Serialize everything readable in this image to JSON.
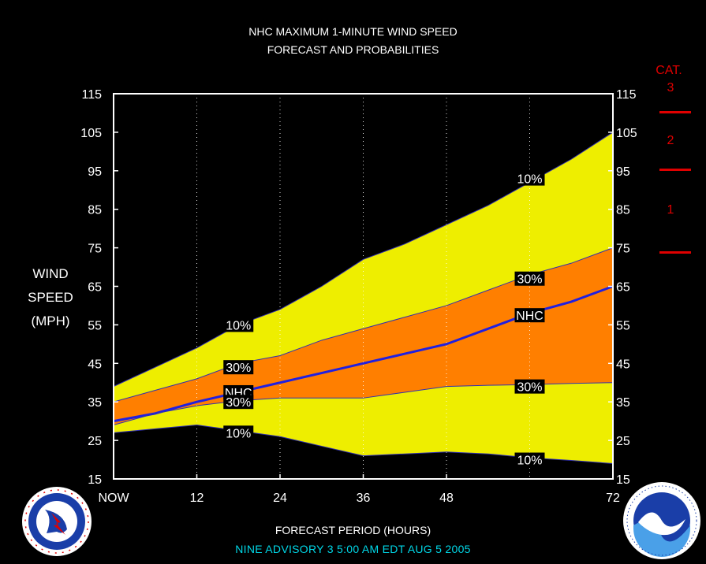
{
  "header": {
    "title_line1": "NHC MAXIMUM 1-MINUTE WIND SPEED",
    "title_line2": "FORECAST AND PROBABILITIES"
  },
  "y_axis_label": [
    "WIND",
    "SPEED",
    "(MPH)"
  ],
  "x_axis_title": "FORECAST PERIOD (HOURS)",
  "advisory": "NINE   ADVISORY  3 5:00  AM  EDT  AUG  5  2005",
  "colors": {
    "background": "#000000",
    "yellow_band": "#eeee00",
    "orange_band": "#ff7f00",
    "nhc_line": "#2020e0",
    "category": "#e00000",
    "advisory": "#00d8e8"
  },
  "category_scale": {
    "header": "CAT.",
    "levels": [
      {
        "label": "3",
        "mph": 111
      },
      {
        "label": "2",
        "mph": 96
      },
      {
        "label": "1",
        "mph": 74
      }
    ]
  },
  "logos": {
    "left": "national-weather-service-logo",
    "right": "noaa-logo"
  },
  "chart_data": {
    "type": "area",
    "title": "NHC MAXIMUM 1-MINUTE WIND SPEED FORECAST AND PROBABILITIES",
    "xlabel": "FORECAST PERIOD (HOURS)",
    "ylabel": "WIND SPEED (MPH)",
    "x_ticks": [
      {
        "x": 0,
        "label": "NOW"
      },
      {
        "x": 12,
        "label": "12"
      },
      {
        "x": 24,
        "label": "24"
      },
      {
        "x": 36,
        "label": "36"
      },
      {
        "x": 48,
        "label": "48"
      },
      {
        "x": 72,
        "label": "72"
      }
    ],
    "xlim": [
      0,
      72
    ],
    "ylim": [
      15,
      115
    ],
    "y_ticks": [
      15,
      25,
      35,
      45,
      55,
      65,
      75,
      85,
      95,
      105,
      115
    ],
    "dotted_vertical_gridlines_at": [
      12,
      24,
      36,
      48,
      60
    ],
    "x": [
      0,
      6,
      12,
      18,
      24,
      30,
      36,
      42,
      48,
      54,
      60,
      66,
      72
    ],
    "series": [
      {
        "name": "10%",
        "band": "upper",
        "values": [
          39,
          44,
          49,
          55,
          59,
          65,
          72,
          76,
          81,
          86,
          92,
          98,
          105
        ]
      },
      {
        "name": "30%",
        "band": "upper",
        "values": [
          35,
          38,
          41,
          45,
          47,
          51,
          54,
          57,
          60,
          64,
          68,
          71,
          75
        ]
      },
      {
        "name": "NHC",
        "band": "forecast",
        "values": [
          30,
          32,
          35,
          37.5,
          40,
          42.5,
          45,
          47.5,
          50,
          54,
          58,
          61,
          65
        ]
      },
      {
        "name": "30%",
        "band": "lower",
        "values": [
          29,
          32,
          34,
          35.3,
          36,
          36,
          36,
          37.5,
          39,
          39.3,
          39.5,
          39.8,
          40
        ]
      },
      {
        "name": "10%",
        "band": "lower",
        "values": [
          27,
          28,
          29,
          27.5,
          26,
          23.5,
          21,
          21.5,
          22,
          21.5,
          20.5,
          19.8,
          19
        ]
      }
    ],
    "annotations": [
      {
        "text": "10%",
        "x": 18,
        "y": 55
      },
      {
        "text": "30%",
        "x": 18,
        "y": 44
      },
      {
        "text": "NHC",
        "x": 18,
        "y": 37.5
      },
      {
        "text": "30%",
        "x": 18,
        "y": 35
      },
      {
        "text": "10%",
        "x": 18,
        "y": 27
      },
      {
        "text": "10%",
        "x": 60,
        "y": 93
      },
      {
        "text": "30%",
        "x": 60,
        "y": 67
      },
      {
        "text": "NHC",
        "x": 60,
        "y": 57.5
      },
      {
        "text": "30%",
        "x": 60,
        "y": 39
      },
      {
        "text": "10%",
        "x": 60,
        "y": 20
      }
    ]
  }
}
